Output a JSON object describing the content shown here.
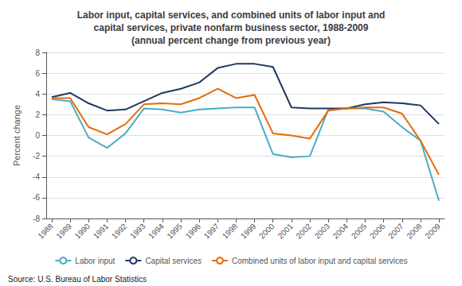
{
  "chart_data": {
    "type": "line",
    "title": "Labor input, capital services, and combined units of labor input and\ncapital services, private nonfarm business sector, 1988-2009\n(annual percent change from previous year)",
    "ylabel": "Percent change",
    "source": "Source: U.S. Bureau of Labor Statistics",
    "x": [
      1988,
      1989,
      1990,
      1991,
      1992,
      1993,
      1994,
      1995,
      1996,
      1997,
      1998,
      1999,
      2000,
      2001,
      2002,
      2003,
      2004,
      2005,
      2006,
      2007,
      2008,
      2009
    ],
    "series": [
      {
        "name": "Labor input",
        "color": "#4bacc6",
        "values": [
          3.5,
          3.3,
          -0.2,
          -1.2,
          0.2,
          2.6,
          2.5,
          2.2,
          2.5,
          2.6,
          2.7,
          2.7,
          -1.8,
          -2.1,
          -2.0,
          2.5,
          2.6,
          2.6,
          2.3,
          0.8,
          -0.5,
          -6.3
        ]
      },
      {
        "name": "Capital services",
        "color": "#1f3864",
        "values": [
          3.7,
          4.1,
          3.1,
          2.4,
          2.5,
          3.3,
          4.1,
          4.5,
          5.1,
          6.5,
          6.9,
          6.9,
          6.6,
          2.7,
          2.6,
          2.6,
          2.6,
          3.0,
          3.2,
          3.1,
          2.9,
          1.1
        ]
      },
      {
        "name": "Combined units of labor input and capital services",
        "color": "#e36c09",
        "values": [
          3.6,
          3.6,
          0.8,
          0.1,
          1.1,
          3.0,
          3.1,
          3.0,
          3.6,
          4.5,
          3.6,
          3.9,
          0.2,
          0.0,
          -0.3,
          2.4,
          2.6,
          2.7,
          2.7,
          2.1,
          -0.5,
          -3.8
        ]
      }
    ],
    "xlim": [
      1987.7,
      2009.3
    ],
    "xticks": [
      1988,
      1989,
      1990,
      1991,
      1992,
      1993,
      1994,
      1995,
      1996,
      1997,
      1998,
      1999,
      2000,
      2001,
      2002,
      2003,
      2004,
      2005,
      2006,
      2007,
      2008,
      2009
    ],
    "ylim": [
      -8,
      8
    ],
    "yticks": [
      -8,
      -6,
      -4,
      -2,
      0,
      2,
      4,
      6,
      8
    ],
    "grid": true,
    "legend": "bottom"
  }
}
